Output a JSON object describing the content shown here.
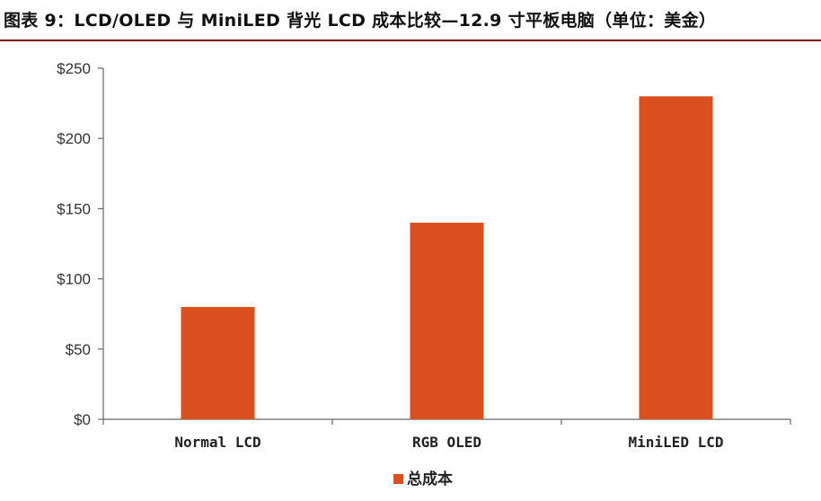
{
  "title": "图表 9：LCD/OLED 与 MiniLED 背光 LCD 成本比较—12.9 寸平板电脑（单位：美金）",
  "colors": {
    "bar": "#d94f1e",
    "axis": "#666666",
    "title_rule": "#7a0f14"
  },
  "chart_data": {
    "type": "bar",
    "categories": [
      "Normal LCD",
      "RGB OLED",
      "MiniLED LCD"
    ],
    "series": [
      {
        "name": "总成本",
        "values": [
          80,
          140,
          230
        ]
      }
    ],
    "ylim": [
      0,
      250
    ],
    "yticks": [
      0,
      50,
      100,
      150,
      200,
      250
    ],
    "ytick_labels": [
      "$0",
      "$50",
      "$100",
      "$150",
      "$200",
      "$250"
    ],
    "xlabel": "",
    "ylabel": "",
    "grid": false,
    "legend_position": "bottom-center"
  }
}
